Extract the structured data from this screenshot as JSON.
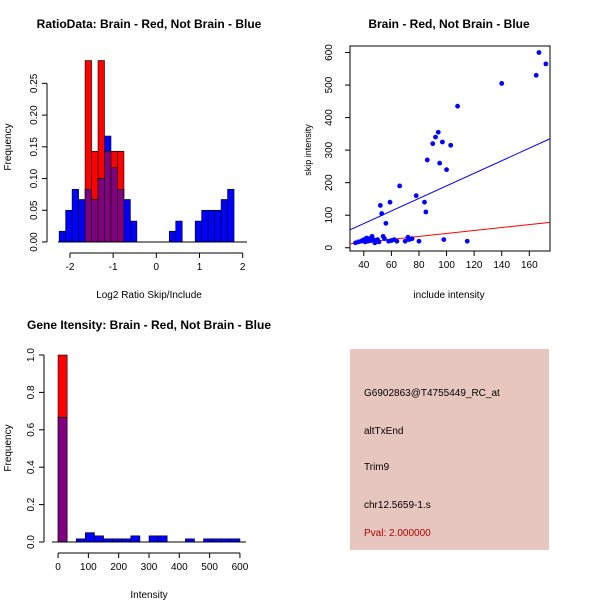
{
  "colors": {
    "brain": "#ff0000",
    "not_brain": "#0000ff",
    "overlap": "#800080",
    "info_bg": "#e6c6bf",
    "pval": "#b00000"
  },
  "chart_data": [
    {
      "id": "ratio",
      "type": "bar",
      "title": "RatioData: Brain - Red, Not Brain - Blue",
      "xlabel": "Log2 Ratio Skip/Include",
      "ylabel": "Frequency",
      "xlim": [
        -2.3,
        2.1
      ],
      "ylim": [
        0,
        0.29
      ],
      "xticks": [
        -2,
        -1,
        0,
        1,
        2
      ],
      "yticks": [
        0.0,
        0.05,
        0.1,
        0.15,
        0.2,
        0.25
      ],
      "ytick_labels": [
        "0.00",
        "0.05",
        "0.10",
        "0.15",
        "0.20",
        "0.25"
      ],
      "bin_width": 0.15,
      "series": [
        {
          "name": "Not Brain",
          "color": "not_brain",
          "bins": [
            [
              -2.25,
              0.017
            ],
            [
              -2.1,
              0.05
            ],
            [
              -1.95,
              0.083
            ],
            [
              -1.8,
              0.067
            ],
            [
              -1.65,
              0.083
            ],
            [
              -1.5,
              0.067
            ],
            [
              -1.35,
              0.1
            ],
            [
              -1.2,
              0.167
            ],
            [
              -1.05,
              0.117
            ],
            [
              -0.9,
              0.083
            ],
            [
              -0.75,
              0.067
            ],
            [
              -0.6,
              0.033
            ],
            [
              0.3,
              0.017
            ],
            [
              0.45,
              0.033
            ],
            [
              0.9,
              0.033
            ],
            [
              1.05,
              0.05
            ],
            [
              1.2,
              0.05
            ],
            [
              1.35,
              0.05
            ],
            [
              1.5,
              0.067
            ],
            [
              1.65,
              0.083
            ]
          ]
        },
        {
          "name": "Brain",
          "color": "brain",
          "bins": [
            [
              -1.65,
              0.286
            ],
            [
              -1.5,
              0.143
            ],
            [
              -1.35,
              0.286
            ],
            [
              -1.2,
              0.143
            ],
            [
              -1.05,
              0.143
            ],
            [
              -0.9,
              0.143
            ]
          ]
        }
      ]
    },
    {
      "id": "scatter",
      "type": "scatter",
      "title": "Brain - Red, Not Brain - Blue",
      "xlabel": "include intensity",
      "ylabel": "skip intensity",
      "xlim": [
        30,
        175
      ],
      "ylim": [
        -10,
        620
      ],
      "xticks": [
        40,
        60,
        80,
        100,
        120,
        140,
        160
      ],
      "yticks": [
        0,
        100,
        200,
        300,
        400,
        500,
        600
      ],
      "points": [
        [
          34,
          15
        ],
        [
          36,
          18
        ],
        [
          38,
          20
        ],
        [
          39,
          22
        ],
        [
          40,
          25
        ],
        [
          41,
          18
        ],
        [
          42,
          30
        ],
        [
          43,
          20
        ],
        [
          44,
          28
        ],
        [
          45,
          22
        ],
        [
          46,
          35
        ],
        [
          47,
          25
        ],
        [
          48,
          15
        ],
        [
          49,
          20
        ],
        [
          50,
          25
        ],
        [
          51,
          18
        ],
        [
          52,
          130
        ],
        [
          53,
          105
        ],
        [
          54,
          35
        ],
        [
          55,
          28
        ],
        [
          56,
          75
        ],
        [
          58,
          20
        ],
        [
          59,
          140
        ],
        [
          60,
          22
        ],
        [
          62,
          25
        ],
        [
          64,
          20
        ],
        [
          66,
          190
        ],
        [
          70,
          20
        ],
        [
          72,
          32
        ],
        [
          73,
          25
        ],
        [
          75,
          28
        ],
        [
          78,
          160
        ],
        [
          80,
          20
        ],
        [
          84,
          140
        ],
        [
          85,
          110
        ],
        [
          86,
          270
        ],
        [
          90,
          320
        ],
        [
          92,
          340
        ],
        [
          94,
          355
        ],
        [
          95,
          260
        ],
        [
          97,
          325
        ],
        [
          98,
          25
        ],
        [
          100,
          240
        ],
        [
          103,
          315
        ],
        [
          108,
          435
        ],
        [
          115,
          20
        ],
        [
          140,
          505
        ],
        [
          165,
          530
        ],
        [
          167,
          600
        ],
        [
          172,
          565
        ]
      ],
      "lines": [
        {
          "color": "not_brain",
          "from": [
            30,
            55
          ],
          "to": [
            175,
            335
          ]
        },
        {
          "color": "brain",
          "from": [
            30,
            12
          ],
          "to": [
            175,
            78
          ]
        }
      ]
    },
    {
      "id": "intensity",
      "type": "bar",
      "title": "Gene Itensity: Brain - Red, Not Brain - Blue",
      "xlabel": "Intensity",
      "ylabel": "Frequency",
      "xlim": [
        -20,
        620
      ],
      "ylim": [
        0,
        1.0
      ],
      "xticks": [
        0,
        100,
        200,
        300,
        400,
        500,
        600
      ],
      "yticks": [
        0.0,
        0.2,
        0.4,
        0.6,
        0.8,
        1.0
      ],
      "ytick_labels": [
        "0.0",
        "0.2",
        "0.4",
        "0.6",
        "0.8",
        "1.0"
      ],
      "bin_width": 30,
      "series": [
        {
          "name": "Not Brain",
          "color": "not_brain",
          "bins": [
            [
              0,
              0.667
            ],
            [
              60,
              0.017
            ],
            [
              90,
              0.05
            ],
            [
              120,
              0.033
            ],
            [
              150,
              0.017
            ],
            [
              180,
              0.017
            ],
            [
              210,
              0.017
            ],
            [
              240,
              0.033
            ],
            [
              300,
              0.033
            ],
            [
              330,
              0.033
            ],
            [
              420,
              0.017
            ],
            [
              480,
              0.017
            ],
            [
              510,
              0.017
            ],
            [
              540,
              0.017
            ],
            [
              570,
              0.017
            ]
          ]
        },
        {
          "name": "Brain",
          "color": "brain",
          "bins": [
            [
              0,
              1.0
            ]
          ]
        }
      ]
    }
  ],
  "info": {
    "probe": "G6902863@T4755449_RC_at",
    "event": "altTxEnd",
    "gene": "Trim9",
    "location": "chr12.5659-1.s",
    "pval": "Pval: 2.000000"
  }
}
